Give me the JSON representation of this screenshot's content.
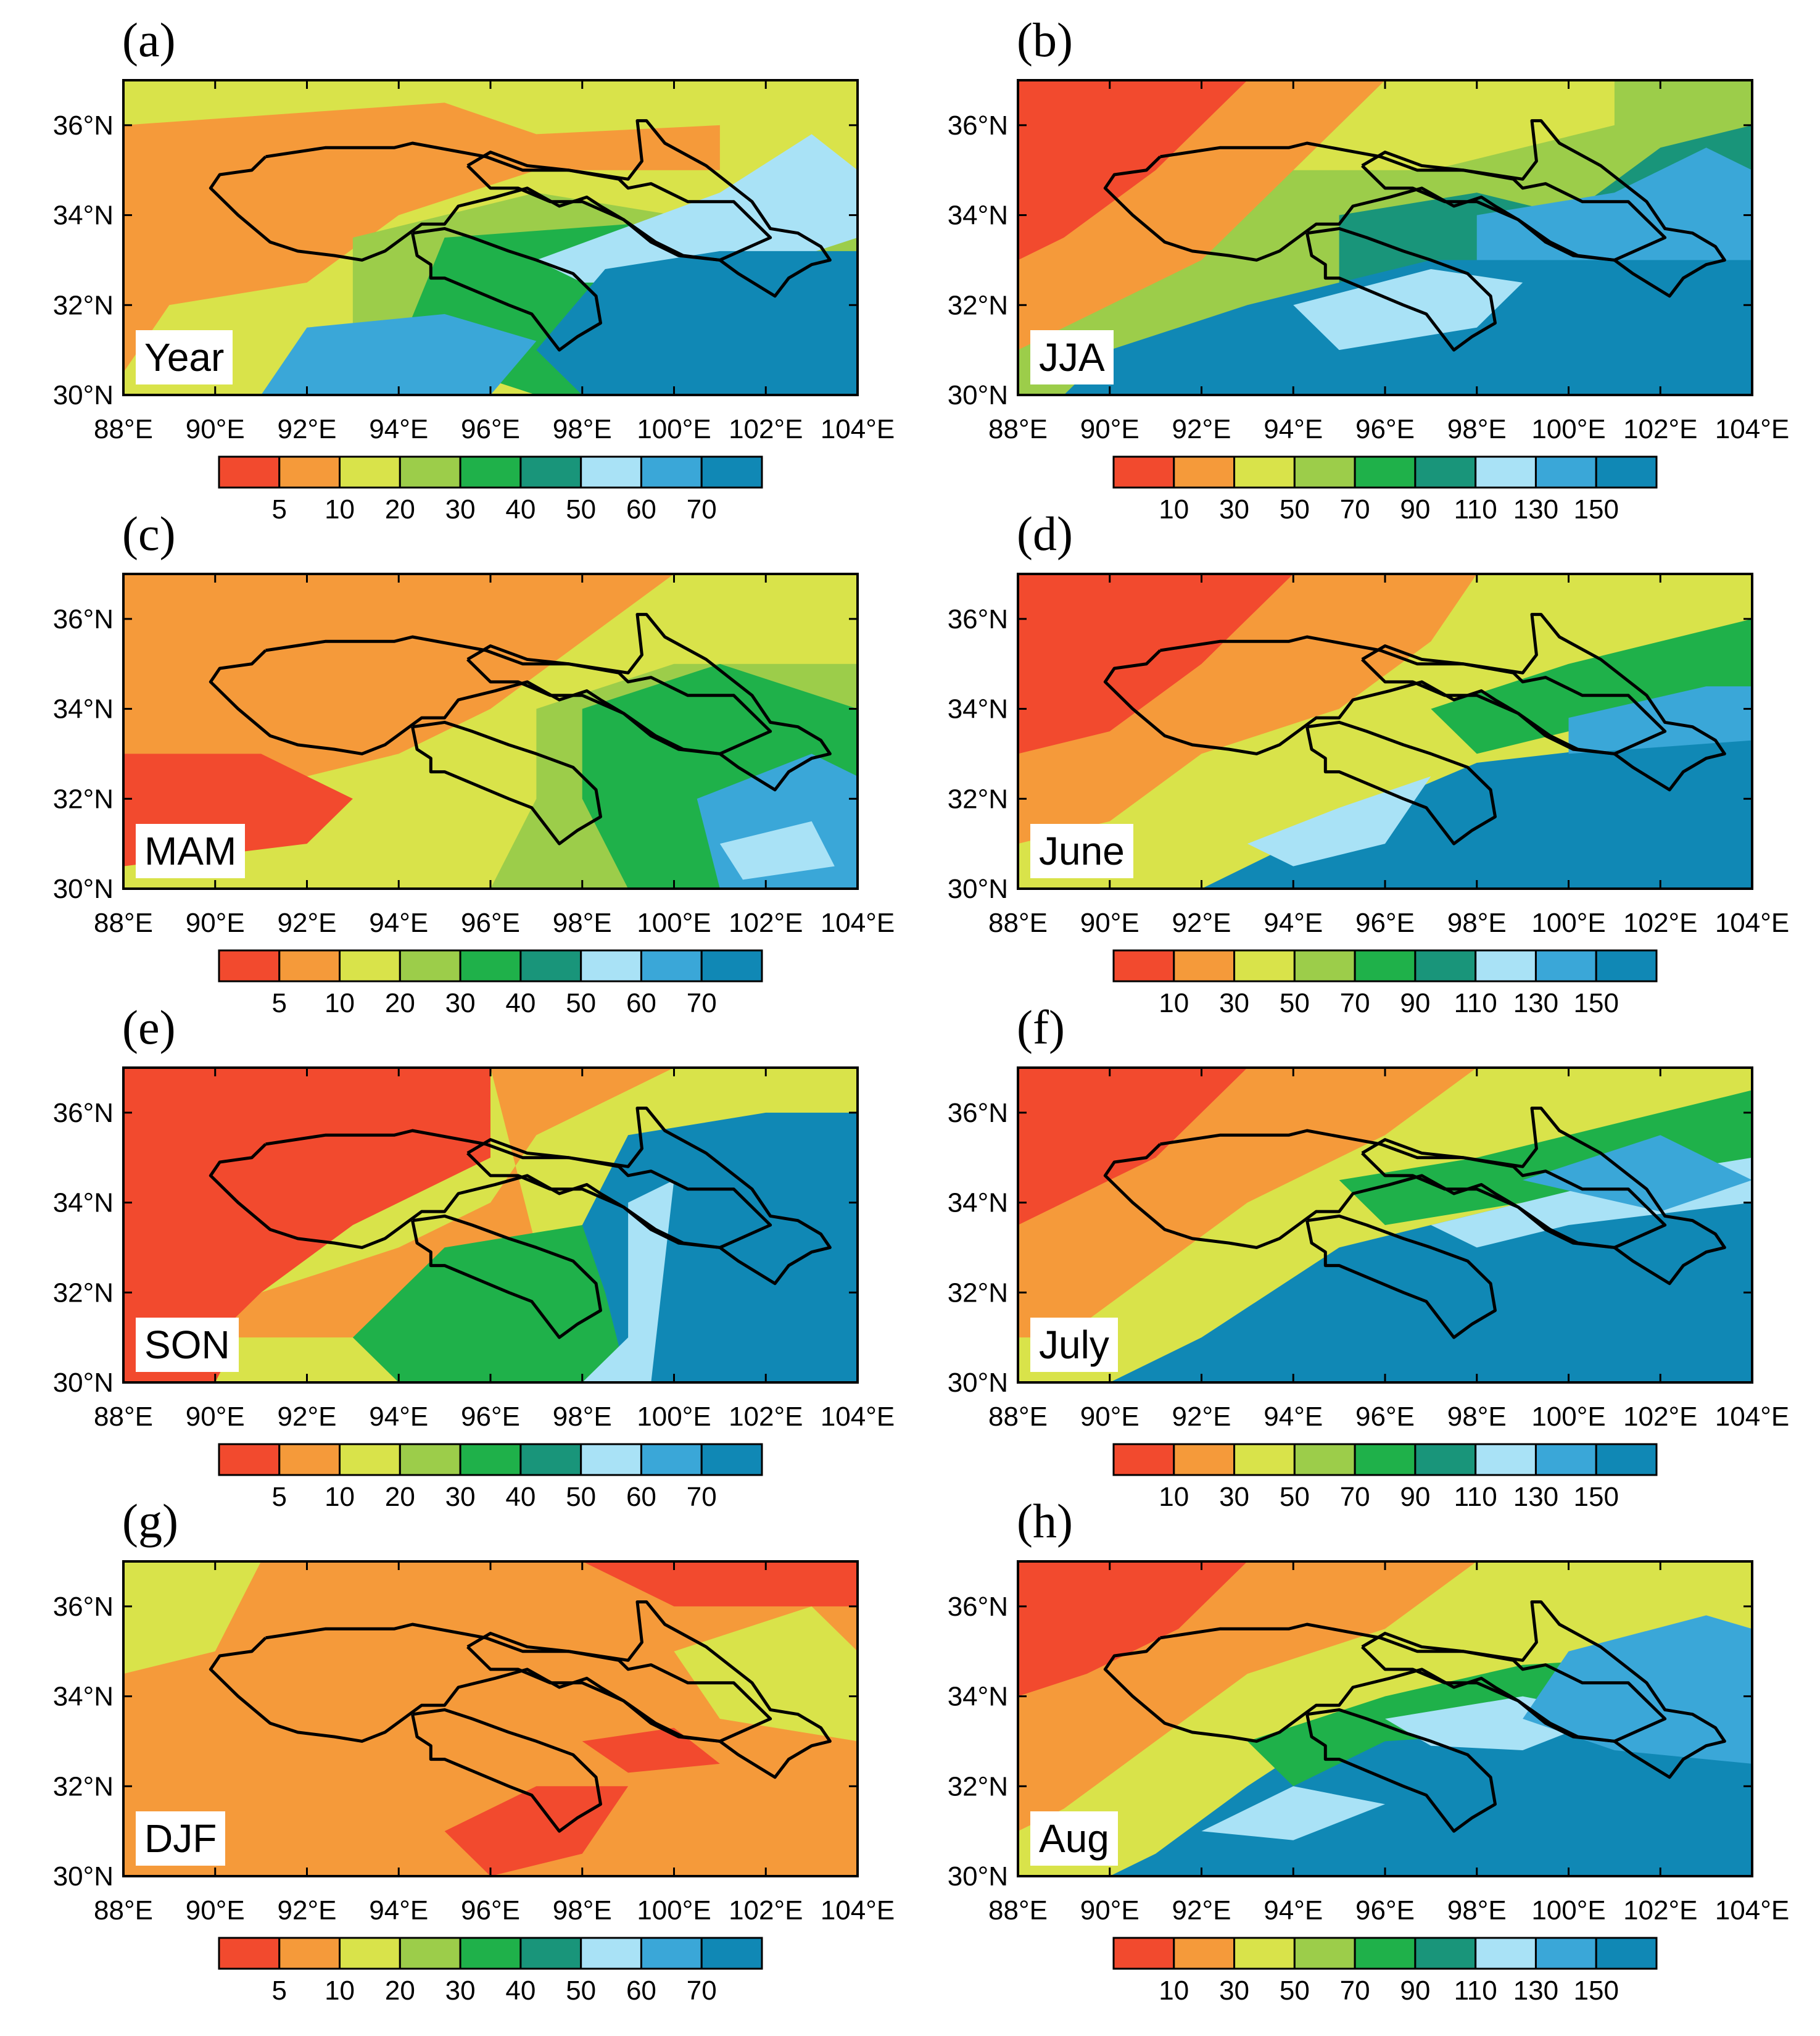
{
  "figure": {
    "lat_ticks": [
      "30°N",
      "32°N",
      "34°N",
      "36°N"
    ],
    "lon_ticks": [
      "88°E",
      "90°E",
      "92°E",
      "94°E",
      "96°E",
      "98°E",
      "100°E",
      "102°E",
      "104°E"
    ],
    "lat_range": [
      30,
      37
    ],
    "lon_range": [
      88,
      104
    ],
    "colorbars": {
      "small": {
        "levels": [
          "5",
          "10",
          "20",
          "30",
          "40",
          "50",
          "60",
          "70"
        ]
      },
      "large": {
        "levels": [
          "10",
          "30",
          "50",
          "70",
          "90",
          "110",
          "130",
          "150"
        ]
      }
    },
    "colors": [
      "#f24a2e",
      "#f59a3a",
      "#d9e34a",
      "#9ccd4a",
      "#1fb14a",
      "#19957a",
      "#a9e2f6",
      "#3aa7d8",
      "#1088b5"
    ],
    "basin_outline_color": "#000000"
  },
  "panels": [
    {
      "letter": "(a)",
      "label": "Year",
      "scale": "small",
      "palette": "year"
    },
    {
      "letter": "(b)",
      "label": "JJA",
      "scale": "large",
      "palette": "jja"
    },
    {
      "letter": "(c)",
      "label": "MAM",
      "scale": "small",
      "palette": "mam"
    },
    {
      "letter": "(d)",
      "label": "June",
      "scale": "large",
      "palette": "june"
    },
    {
      "letter": "(e)",
      "label": "SON",
      "scale": "small",
      "palette": "son"
    },
    {
      "letter": "(f)",
      "label": "July",
      "scale": "large",
      "palette": "july"
    },
    {
      "letter": "(g)",
      "label": "DJF",
      "scale": "small",
      "palette": "djf"
    },
    {
      "letter": "(h)",
      "label": "Aug",
      "scale": "large",
      "palette": "aug"
    }
  ]
}
